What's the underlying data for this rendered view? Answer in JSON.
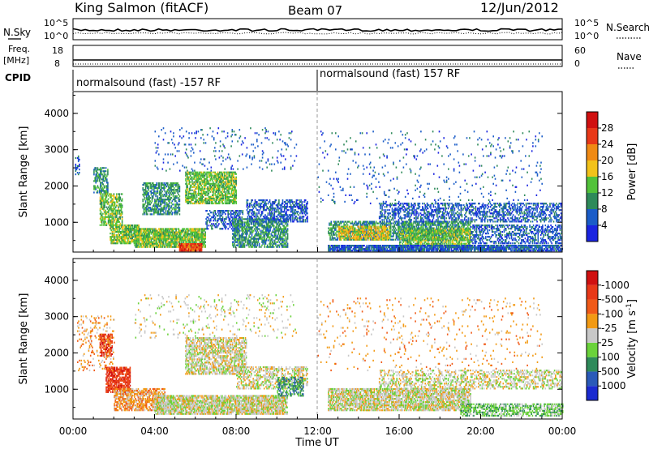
{
  "header": {
    "station": "King Salmon (fitACF)",
    "beam": "Beam 07",
    "date": "12/Jun/2012"
  },
  "panels": {
    "noise": {
      "left_label": "N.Sky",
      "right_label": "N.Search",
      "left_ticks": [
        "10^5",
        "10^0"
      ],
      "right_ticks": [
        "10^5",
        "10^0"
      ]
    },
    "freq": {
      "left_label_1": "Freq.",
      "left_label_2": "[MHz]",
      "right_label": "Nave",
      "left_ticks": [
        "18",
        "8"
      ],
      "right_ticks": [
        "60",
        "0"
      ]
    },
    "cpid": {
      "label": "CPID",
      "segments": [
        "normalsound (fast) -157 RF",
        "normalsound (fast) 157 RF"
      ]
    }
  },
  "x_axis": {
    "label": "Time UT",
    "ticks": [
      "00:00",
      "04:00",
      "08:00",
      "12:00",
      "16:00",
      "20:00",
      "00:00"
    ]
  },
  "chart_data": [
    {
      "type": "heatmap",
      "title": "",
      "xlabel": "Time UT",
      "ylabel": "Slant Range [km]",
      "x_range_hours": [
        0,
        24
      ],
      "ylim": [
        180,
        4600
      ],
      "yticks": [
        1000,
        2000,
        3000,
        4000
      ],
      "colorbar": {
        "label": "Power [dB]",
        "ticks": [
          "4",
          "8",
          "12",
          "16",
          "20",
          "24",
          "28"
        ],
        "colors": [
          "#1a24e0",
          "#1a5cc8",
          "#2e8a5a",
          "#52c23a",
          "#f2c21a",
          "#f08a14",
          "#e83818",
          "#d01010"
        ]
      },
      "regions": [
        {
          "t0": 0.1,
          "t1": 0.3,
          "r0": 2300,
          "r1": 2800,
          "level": 1,
          "density": 0.5
        },
        {
          "t0": 1.0,
          "t1": 1.7,
          "r0": 1800,
          "r1": 2500,
          "level": 2,
          "density": 0.6
        },
        {
          "t0": 1.3,
          "t1": 2.4,
          "r0": 900,
          "r1": 1800,
          "level": 3,
          "density": 0.65
        },
        {
          "t0": 1.8,
          "t1": 3.2,
          "r0": 400,
          "r1": 900,
          "level": 3,
          "density": 0.8
        },
        {
          "t0": 3.0,
          "t1": 6.5,
          "r0": 300,
          "r1": 800,
          "level": 3,
          "density": 0.85
        },
        {
          "t0": 5.2,
          "t1": 6.3,
          "r0": 200,
          "r1": 400,
          "level": 6,
          "density": 0.9
        },
        {
          "t0": 3.4,
          "t1": 5.2,
          "r0": 1200,
          "r1": 2100,
          "level": 2,
          "density": 0.6
        },
        {
          "t0": 5.5,
          "t1": 8.0,
          "r0": 1500,
          "r1": 2400,
          "level": 3,
          "density": 0.7
        },
        {
          "t0": 6.5,
          "t1": 8.3,
          "r0": 800,
          "r1": 1300,
          "level": 1,
          "density": 0.5
        },
        {
          "t0": 7.8,
          "t1": 10.5,
          "r0": 300,
          "r1": 1100,
          "level": 2,
          "density": 0.65
        },
        {
          "t0": 8.5,
          "t1": 11.5,
          "r0": 1000,
          "r1": 1600,
          "level": 1,
          "density": 0.5
        },
        {
          "t0": 4.0,
          "t1": 11.0,
          "r0": 2400,
          "r1": 3600,
          "level": 1,
          "density": 0.06
        },
        {
          "t0": 12.5,
          "t1": 19.5,
          "r0": 500,
          "r1": 1000,
          "level": 2,
          "density": 0.6
        },
        {
          "t0": 13.0,
          "t1": 15.5,
          "r0": 500,
          "r1": 900,
          "level": 4,
          "density": 0.6
        },
        {
          "t0": 16.0,
          "t1": 19.5,
          "r0": 300,
          "r1": 800,
          "level": 3,
          "density": 0.65
        },
        {
          "t0": 12.5,
          "t1": 24.0,
          "r0": 200,
          "r1": 350,
          "level": 1,
          "density": 0.85
        },
        {
          "t0": 15.0,
          "t1": 24.0,
          "r0": 1000,
          "r1": 1500,
          "level": 1,
          "density": 0.45
        },
        {
          "t0": 19.5,
          "t1": 24.0,
          "r0": 400,
          "r1": 900,
          "level": 1,
          "density": 0.45
        },
        {
          "t0": 12.0,
          "t1": 23.0,
          "r0": 1500,
          "r1": 3500,
          "level": 1,
          "density": 0.04
        }
      ]
    },
    {
      "type": "heatmap",
      "title": "",
      "xlabel": "Time UT",
      "ylabel": "Slant Range [km]",
      "x_range_hours": [
        0,
        24
      ],
      "ylim": [
        180,
        4600
      ],
      "yticks": [
        1000,
        2000,
        3000,
        4000
      ],
      "colorbar": {
        "label": "Velocity [m s^-1]",
        "ticks": [
          "1000",
          "500",
          "100",
          "25",
          "-25",
          "-100",
          "-500",
          "-1000"
        ],
        "colors": [
          "#1a2ad0",
          "#2a5ab8",
          "#2e8a5a",
          "#6ad23a",
          "#c8c8c8",
          "#f29a14",
          "#f05a18",
          "#e83818",
          "#d01010"
        ]
      },
      "regions": [
        {
          "t0": 1.3,
          "t1": 1.9,
          "r0": 1900,
          "r1": 2500,
          "level": 7,
          "density": 0.7
        },
        {
          "t0": 1.6,
          "t1": 2.8,
          "r0": 900,
          "r1": 1600,
          "level": 7,
          "density": 0.7
        },
        {
          "t0": 2.0,
          "t1": 4.5,
          "r0": 400,
          "r1": 1000,
          "level": 5,
          "density": 0.65
        },
        {
          "t0": 4.0,
          "t1": 10.5,
          "r0": 300,
          "r1": 800,
          "level": 4,
          "density": 0.8
        },
        {
          "t0": 5.5,
          "t1": 8.5,
          "r0": 1400,
          "r1": 2400,
          "level": 4,
          "density": 0.6
        },
        {
          "t0": 8.0,
          "t1": 11.5,
          "r0": 1000,
          "r1": 1600,
          "level": 4,
          "density": 0.45
        },
        {
          "t0": 10.0,
          "t1": 11.3,
          "r0": 800,
          "r1": 1300,
          "level": 2,
          "density": 0.5
        },
        {
          "t0": 12.5,
          "t1": 19.5,
          "r0": 400,
          "r1": 1000,
          "level": 4,
          "density": 0.75
        },
        {
          "t0": 15.0,
          "t1": 24.0,
          "r0": 1000,
          "r1": 1500,
          "level": 4,
          "density": 0.4
        },
        {
          "t0": 19.0,
          "t1": 24.0,
          "r0": 250,
          "r1": 600,
          "level": 3,
          "density": 0.55
        },
        {
          "t0": 0.2,
          "t1": 2.0,
          "r0": 1500,
          "r1": 3000,
          "level": 5,
          "density": 0.15
        },
        {
          "t0": 3.0,
          "t1": 11.0,
          "r0": 2400,
          "r1": 3600,
          "level": 4,
          "density": 0.06
        },
        {
          "t0": 12.0,
          "t1": 23.0,
          "r0": 1500,
          "r1": 3500,
          "level": 5,
          "density": 0.04
        }
      ]
    }
  ]
}
